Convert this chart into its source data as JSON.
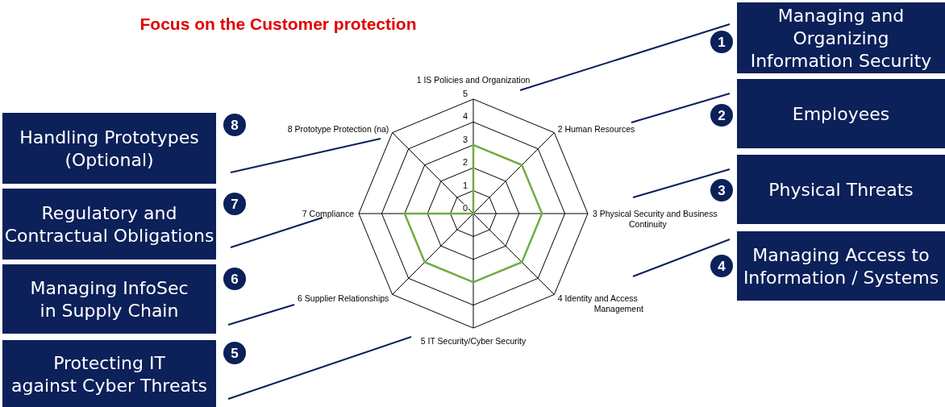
{
  "chart_data": {
    "type": "radar",
    "title": "Focus on the Customer protection",
    "categories": [
      "1 IS Policies and Organization",
      "2 Human Resources",
      "3 Physical Security and Business Continuity",
      "4 Identity and Access Management",
      "5 IT Security/Cyber Security",
      "6 Supplier Relationships",
      "7 Compliance",
      "8 Prototype Protection (na)"
    ],
    "series": [
      {
        "color": "#70ad47",
        "values": [
          3,
          3,
          3,
          3,
          3,
          3,
          3,
          0
        ]
      }
    ],
    "ylim": [
      0,
      5
    ],
    "yticks": [
      0,
      1,
      2,
      3,
      4,
      5
    ],
    "grid": true,
    "annotations": [
      "1",
      "Managing and\nOrganizing\nInformation Security",
      "2",
      "Employees",
      "3",
      "Physical Threats",
      "4",
      "Managing Access to\nInformation / Systems",
      "5",
      "Protecting IT\nagainst Cyber Threats",
      "6",
      "Managing InfoSec\nin Supply Chain",
      "7",
      "Regulatory and\nContractual Obligations",
      "8",
      "Handling Prototypes\n(Optional)"
    ]
  }
}
